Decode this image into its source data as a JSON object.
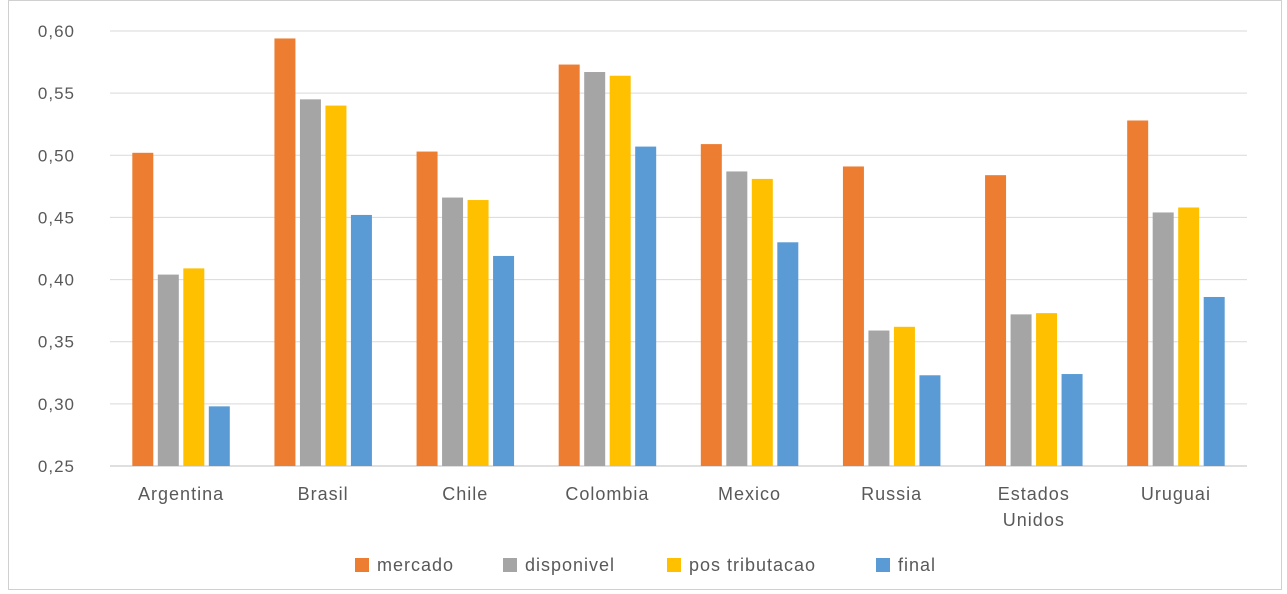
{
  "chart_data": {
    "type": "bar",
    "categories": [
      "Argentina",
      "Brasil",
      "Chile",
      "Colombia",
      "Mexico",
      "Russia",
      "Estados Unidos",
      "Uruguai"
    ],
    "category_lines": [
      [
        "Argentina"
      ],
      [
        "Brasil"
      ],
      [
        "Chile"
      ],
      [
        "Colombia"
      ],
      [
        "Mexico"
      ],
      [
        "Russia"
      ],
      [
        "Estados",
        "Unidos"
      ],
      [
        "Uruguai"
      ]
    ],
    "series": [
      {
        "name": "mercado",
        "color": "#ED7D31",
        "values": [
          0.502,
          0.594,
          0.503,
          0.573,
          0.509,
          0.491,
          0.484,
          0.528
        ]
      },
      {
        "name": "disponivel",
        "color": "#A5A5A5",
        "values": [
          0.404,
          0.545,
          0.466,
          0.567,
          0.487,
          0.359,
          0.372,
          0.454
        ]
      },
      {
        "name": "pos tributacao",
        "color": "#FFC000",
        "values": [
          0.409,
          0.54,
          0.464,
          0.564,
          0.481,
          0.362,
          0.373,
          0.458
        ]
      },
      {
        "name": "final",
        "color": "#5B9BD5",
        "values": [
          0.298,
          0.452,
          0.419,
          0.507,
          0.43,
          0.323,
          0.324,
          0.386
        ]
      }
    ],
    "ylim": [
      0.25,
      0.6
    ],
    "yticks": [
      0.25,
      0.3,
      0.35,
      0.4,
      0.45,
      0.5,
      0.55,
      0.6
    ],
    "ytick_labels": [
      "0,25",
      "0,30",
      "0,35",
      "0,40",
      "0,45",
      "0,50",
      "0,55",
      "0,60"
    ],
    "title": "",
    "xlabel": "",
    "ylabel": "",
    "grid": true,
    "legend_position": "bottom"
  }
}
